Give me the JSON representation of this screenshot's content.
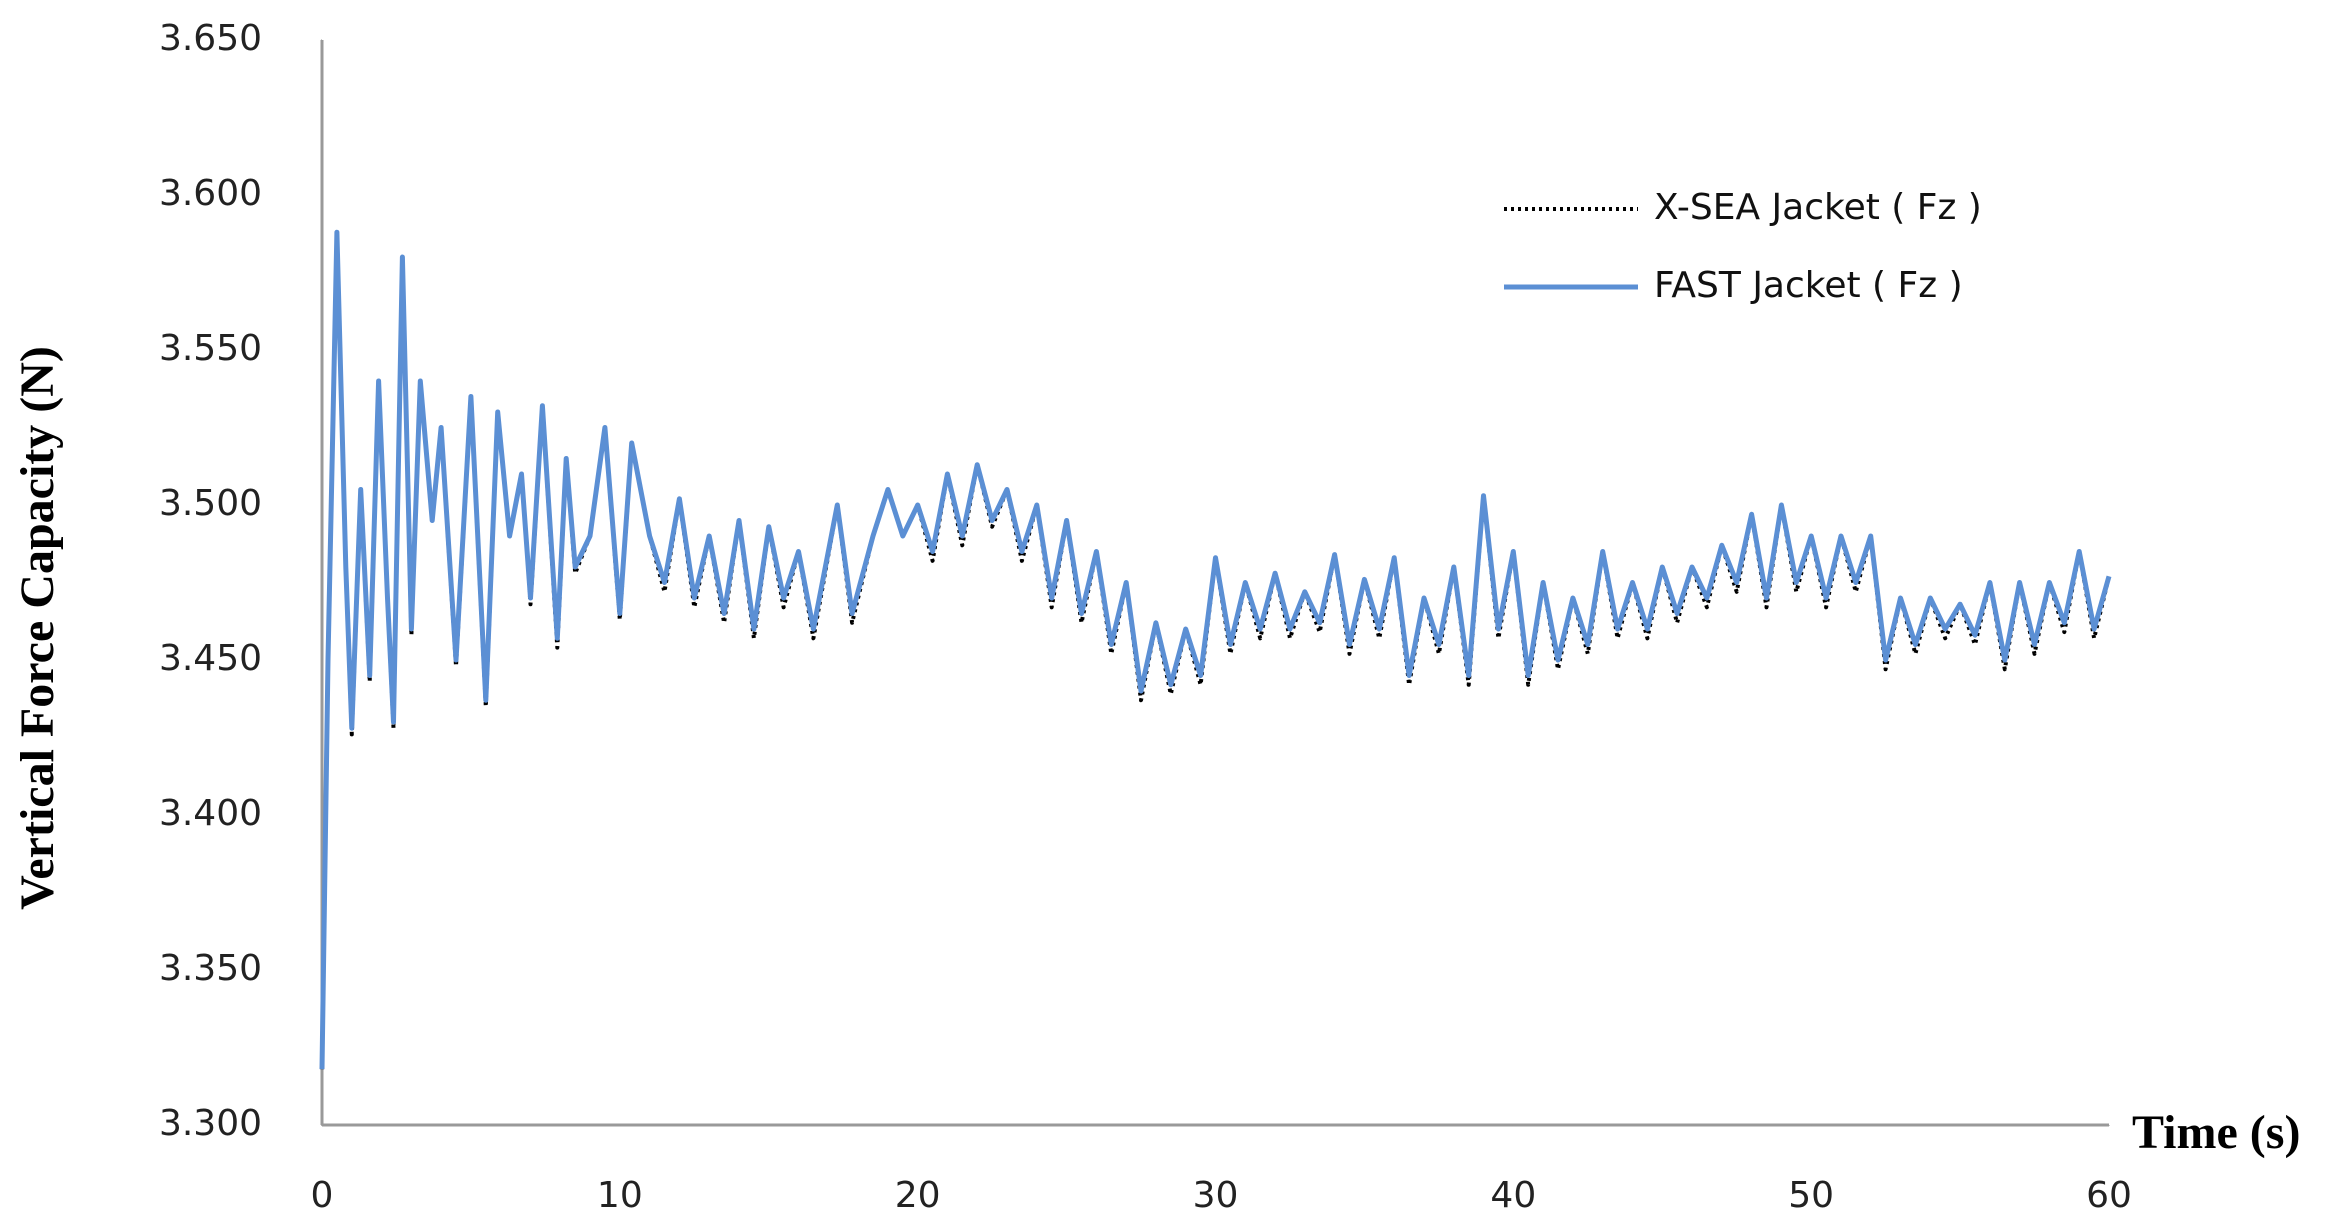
{
  "chart_data": {
    "type": "line",
    "xlabel": "Time (s)",
    "ylabel": "Vertical Force Capacity (N)",
    "x": [
      0,
      0.2,
      0.5,
      0.8,
      1,
      1.3,
      1.6,
      1.9,
      2.2,
      2.4,
      2.7,
      3,
      3.3,
      3.7,
      4,
      4.5,
      5,
      5.5,
      5.9,
      6.3,
      6.7,
      7,
      7.4,
      7.9,
      8.2,
      8.5,
      9,
      9.5,
      10,
      10.4,
      11,
      11.5,
      12,
      12.5,
      13,
      13.5,
      14,
      14.5,
      15,
      15.5,
      16,
      16.5,
      17.3,
      17.8,
      18.5,
      19,
      19.5,
      20,
      20.5,
      21,
      21.5,
      22,
      22.5,
      23,
      23.5,
      24,
      24.5,
      25,
      25.5,
      26,
      26.5,
      27,
      27.5,
      28,
      28.5,
      29,
      29.5,
      30,
      30.5,
      31,
      31.5,
      32,
      32.5,
      33,
      33.5,
      34,
      34.5,
      35,
      35.5,
      36,
      36.5,
      37,
      37.5,
      38,
      38.5,
      39,
      39.5,
      40,
      40.5,
      41,
      41.5,
      42,
      42.5,
      43,
      43.5,
      44,
      44.5,
      45,
      45.5,
      46,
      46.5,
      47,
      47.5,
      48,
      48.5,
      49,
      49.5,
      50,
      50.5,
      51,
      51.5,
      52,
      52.5,
      53,
      53.5,
      54,
      54.5,
      55,
      55.5,
      56,
      56.5,
      57,
      57.5,
      58,
      58.5,
      59,
      59.5,
      60
    ],
    "series": [
      {
        "name": "X-SEA Jacket ( Fz )",
        "color": "#000000",
        "style": "dotted",
        "values": [
          3.318,
          3.45,
          3.588,
          3.48,
          3.426,
          3.505,
          3.443,
          3.54,
          3.47,
          3.428,
          3.58,
          3.458,
          3.54,
          3.495,
          3.525,
          3.448,
          3.535,
          3.435,
          3.53,
          3.49,
          3.51,
          3.468,
          3.532,
          3.454,
          3.515,
          3.478,
          3.49,
          3.525,
          3.463,
          3.52,
          3.49,
          3.472,
          3.502,
          3.467,
          3.49,
          3.462,
          3.495,
          3.457,
          3.493,
          3.467,
          3.485,
          3.457,
          3.5,
          3.462,
          3.49,
          3.505,
          3.49,
          3.5,
          3.482,
          3.51,
          3.487,
          3.513,
          3.493,
          3.505,
          3.482,
          3.5,
          3.467,
          3.495,
          3.462,
          3.485,
          3.452,
          3.475,
          3.437,
          3.462,
          3.439,
          3.46,
          3.442,
          3.483,
          3.452,
          3.475,
          3.457,
          3.478,
          3.457,
          3.472,
          3.459,
          3.484,
          3.452,
          3.476,
          3.457,
          3.483,
          3.442,
          3.47,
          3.452,
          3.48,
          3.442,
          3.503,
          3.457,
          3.485,
          3.442,
          3.475,
          3.447,
          3.47,
          3.452,
          3.485,
          3.457,
          3.475,
          3.457,
          3.48,
          3.462,
          3.48,
          3.467,
          3.487,
          3.472,
          3.497,
          3.467,
          3.5,
          3.472,
          3.49,
          3.467,
          3.49,
          3.472,
          3.49,
          3.447,
          3.47,
          3.452,
          3.47,
          3.457,
          3.468,
          3.455,
          3.475,
          3.447,
          3.475,
          3.452,
          3.475,
          3.459,
          3.485,
          3.457,
          3.477
        ]
      },
      {
        "name": "FAST Jacket ( Fz )",
        "color": "#5b8fd4",
        "style": "solid",
        "values": [
          3.318,
          3.45,
          3.588,
          3.48,
          3.428,
          3.505,
          3.445,
          3.54,
          3.47,
          3.43,
          3.58,
          3.46,
          3.54,
          3.495,
          3.525,
          3.45,
          3.535,
          3.437,
          3.53,
          3.49,
          3.51,
          3.47,
          3.532,
          3.457,
          3.515,
          3.48,
          3.49,
          3.525,
          3.465,
          3.52,
          3.49,
          3.475,
          3.502,
          3.47,
          3.49,
          3.465,
          3.495,
          3.46,
          3.493,
          3.47,
          3.485,
          3.46,
          3.5,
          3.465,
          3.49,
          3.505,
          3.49,
          3.5,
          3.485,
          3.51,
          3.49,
          3.513,
          3.495,
          3.505,
          3.485,
          3.5,
          3.47,
          3.495,
          3.465,
          3.485,
          3.455,
          3.475,
          3.44,
          3.462,
          3.442,
          3.46,
          3.445,
          3.483,
          3.455,
          3.475,
          3.46,
          3.478,
          3.46,
          3.472,
          3.462,
          3.484,
          3.455,
          3.476,
          3.46,
          3.483,
          3.445,
          3.47,
          3.455,
          3.48,
          3.445,
          3.503,
          3.46,
          3.485,
          3.445,
          3.475,
          3.45,
          3.47,
          3.455,
          3.485,
          3.46,
          3.475,
          3.46,
          3.48,
          3.465,
          3.48,
          3.47,
          3.487,
          3.475,
          3.497,
          3.47,
          3.5,
          3.475,
          3.49,
          3.47,
          3.49,
          3.475,
          3.49,
          3.45,
          3.47,
          3.455,
          3.47,
          3.46,
          3.468,
          3.458,
          3.475,
          3.45,
          3.475,
          3.455,
          3.475,
          3.462,
          3.485,
          3.46,
          3.477
        ]
      }
    ],
    "xlim": [
      0,
      60
    ],
    "xticks": [
      0,
      10,
      20,
      30,
      40,
      50,
      60
    ],
    "ylim": [
      3.3,
      3.65
    ],
    "yticks": [
      {
        "value": 3.3,
        "label": "3.300"
      },
      {
        "value": 3.35,
        "label": "3.350"
      },
      {
        "value": 3.4,
        "label": "3.400"
      },
      {
        "value": 3.45,
        "label": "3.450"
      },
      {
        "value": 3.5,
        "label": "3.500"
      },
      {
        "value": 3.55,
        "label": "3.550"
      },
      {
        "value": 3.6,
        "label": "3.600"
      },
      {
        "value": 3.65,
        "label": "3.650"
      }
    ],
    "grid": false,
    "legend": "upper right"
  }
}
